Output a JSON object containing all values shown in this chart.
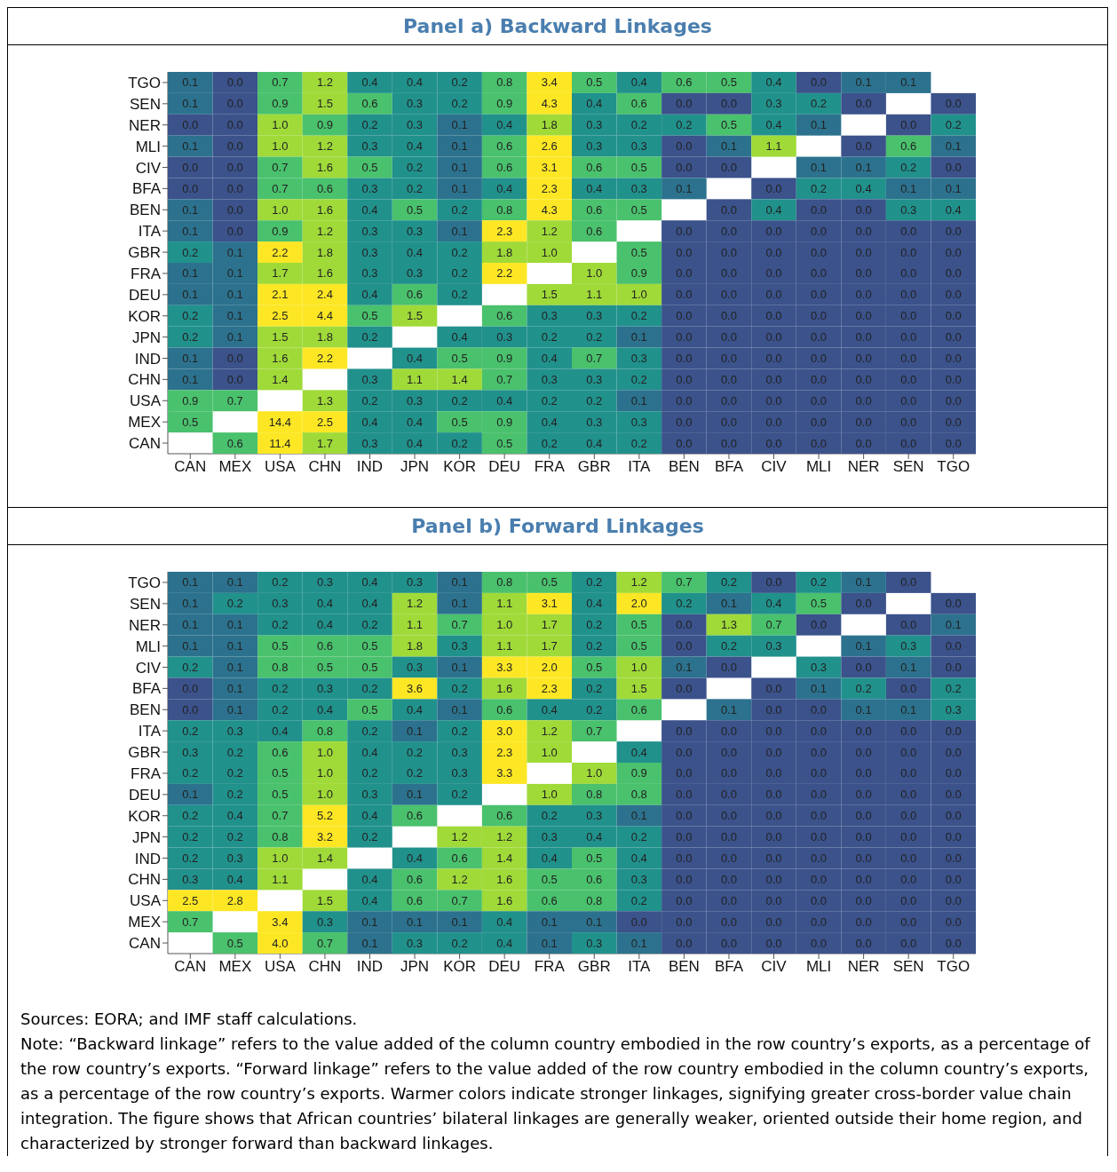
{
  "chart_data": [
    {
      "type": "heatmap",
      "title": "Panel a) Backward Linkages",
      "data_labels": true,
      "categories": [
        "CAN",
        "MEX",
        "USA",
        "CHN",
        "IND",
        "JPN",
        "KOR",
        "DEU",
        "FRA",
        "GBR",
        "ITA",
        "BEN",
        "BFA",
        "CIV",
        "MLI",
        "NER",
        "SEN",
        "TGO"
      ],
      "y_categories": [
        "TGO",
        "SEN",
        "NER",
        "MLI",
        "CIV",
        "BFA",
        "BEN",
        "ITA",
        "GBR",
        "FRA",
        "DEU",
        "KOR",
        "JPN",
        "IND",
        "CHN",
        "USA",
        "MEX",
        "CAN"
      ],
      "cells": [
        [
          0.1,
          0.0,
          0.7,
          1.2,
          0.4,
          0.4,
          0.2,
          0.8,
          3.4,
          0.5,
          0.4,
          0.6,
          0.5,
          0.4,
          0.0,
          0.1,
          0.1,
          null
        ],
        [
          0.1,
          0.0,
          0.9,
          1.5,
          0.6,
          0.3,
          0.2,
          0.9,
          4.3,
          0.4,
          0.6,
          0.0,
          0.0,
          0.3,
          0.2,
          0.0,
          null,
          0.0
        ],
        [
          0.0,
          0.0,
          1.0,
          0.9,
          0.2,
          0.3,
          0.1,
          0.4,
          1.8,
          0.3,
          0.2,
          0.2,
          0.5,
          0.4,
          0.1,
          null,
          0.0,
          0.2
        ],
        [
          0.1,
          0.0,
          1.0,
          1.2,
          0.3,
          0.4,
          0.1,
          0.6,
          2.6,
          0.3,
          0.3,
          0.0,
          0.1,
          1.1,
          null,
          0.0,
          0.6,
          0.1
        ],
        [
          0.0,
          0.0,
          0.7,
          1.6,
          0.5,
          0.2,
          0.1,
          0.6,
          3.1,
          0.6,
          0.5,
          0.0,
          0.0,
          null,
          0.1,
          0.1,
          0.2,
          0.0
        ],
        [
          0.0,
          0.0,
          0.7,
          0.6,
          0.3,
          0.2,
          0.1,
          0.4,
          2.3,
          0.4,
          0.3,
          0.1,
          null,
          0.0,
          0.2,
          0.4,
          0.1,
          0.1
        ],
        [
          0.1,
          0.0,
          1.0,
          1.6,
          0.4,
          0.5,
          0.2,
          0.8,
          4.3,
          0.6,
          0.5,
          null,
          0.0,
          0.4,
          0.0,
          0.0,
          0.3,
          0.4
        ],
        [
          0.1,
          0.0,
          0.9,
          1.2,
          0.3,
          0.3,
          0.1,
          2.3,
          1.2,
          0.6,
          null,
          0.0,
          0.0,
          0.0,
          0.0,
          0.0,
          0.0,
          0.0
        ],
        [
          0.2,
          0.1,
          2.2,
          1.8,
          0.3,
          0.4,
          0.2,
          1.8,
          1.0,
          null,
          0.5,
          0.0,
          0.0,
          0.0,
          0.0,
          0.0,
          0.0,
          0.0
        ],
        [
          0.1,
          0.1,
          1.7,
          1.6,
          0.3,
          0.3,
          0.2,
          2.2,
          null,
          1.0,
          0.9,
          0.0,
          0.0,
          0.0,
          0.0,
          0.0,
          0.0,
          0.0
        ],
        [
          0.1,
          0.1,
          2.1,
          2.4,
          0.4,
          0.6,
          0.2,
          null,
          1.5,
          1.1,
          1.0,
          0.0,
          0.0,
          0.0,
          0.0,
          0.0,
          0.0,
          0.0
        ],
        [
          0.2,
          0.1,
          2.5,
          4.4,
          0.5,
          1.5,
          null,
          0.6,
          0.3,
          0.3,
          0.2,
          0.0,
          0.0,
          0.0,
          0.0,
          0.0,
          0.0,
          0.0
        ],
        [
          0.2,
          0.1,
          1.5,
          1.8,
          0.2,
          null,
          0.4,
          0.3,
          0.2,
          0.2,
          0.1,
          0.0,
          0.0,
          0.0,
          0.0,
          0.0,
          0.0,
          0.0
        ],
        [
          0.1,
          0.0,
          1.6,
          2.2,
          null,
          0.4,
          0.5,
          0.9,
          0.4,
          0.7,
          0.3,
          0.0,
          0.0,
          0.0,
          0.0,
          0.0,
          0.0,
          0.0
        ],
        [
          0.1,
          0.0,
          1.4,
          null,
          0.3,
          1.1,
          1.4,
          0.7,
          0.3,
          0.3,
          0.2,
          0.0,
          0.0,
          0.0,
          0.0,
          0.0,
          0.0,
          0.0
        ],
        [
          0.9,
          0.7,
          null,
          1.3,
          0.2,
          0.3,
          0.2,
          0.4,
          0.2,
          0.2,
          0.1,
          0.0,
          0.0,
          0.0,
          0.0,
          0.0,
          0.0,
          0.0
        ],
        [
          0.5,
          null,
          14.4,
          2.5,
          0.4,
          0.4,
          0.5,
          0.9,
          0.4,
          0.3,
          0.3,
          0.0,
          0.0,
          0.0,
          0.0,
          0.0,
          0.0,
          0.0
        ],
        [
          null,
          0.6,
          11.4,
          1.7,
          0.3,
          0.4,
          0.2,
          0.5,
          0.2,
          0.4,
          0.2,
          0.0,
          0.0,
          0.0,
          0.0,
          0.0,
          0.0,
          0.0
        ]
      ],
      "cell_labels": [
        [
          "0.1",
          "0.0",
          "0.7",
          "1.2",
          "0.4",
          "0.4",
          "0.2",
          "0.8",
          "3.4",
          "0.5",
          "0.4",
          "0.6",
          "0.5",
          "0.4",
          "0.0",
          "0.1",
          "0.1",
          null
        ],
        [
          "0.1",
          "0.0",
          "0.9",
          "1.5",
          "0.6",
          "0.3",
          "0.2",
          "0.9",
          "4.3",
          "0.4",
          "0.6",
          "0.0",
          "0.0",
          "0.3",
          "0.2",
          "0.0",
          null,
          "0.0"
        ],
        [
          "0.0",
          "0.0",
          "1.0",
          "0.9",
          "0.2",
          "0.3",
          "0.1",
          "0.4",
          "1.8",
          "0.3",
          "0.2",
          "0.2",
          "0.5",
          "0.4",
          "0.1",
          null,
          "0.0",
          "0.2"
        ],
        [
          "0.1",
          "0.0",
          "1.0",
          "1.2",
          "0.3",
          "0.4",
          "0.1",
          "0.6",
          "2.6",
          "0.3",
          "0.3",
          "0.0",
          "0.1",
          "1.1",
          null,
          "0.0",
          "0.6",
          "0.1"
        ],
        [
          "0.0",
          "0.0",
          "0.7",
          "1.6",
          "0.5",
          "0.2",
          "0.1",
          "0.6",
          "3.1",
          "0.6",
          "0.5",
          "0.0",
          "0.0",
          null,
          "0.1",
          "0.1",
          "0.2",
          "0.0"
        ],
        [
          "0.0",
          "0.0",
          "0.7",
          "0.6",
          "0.3",
          "0.2",
          "0.1",
          "0.4",
          "2.3",
          "0.4",
          "0.3",
          "0.1",
          null,
          "0.0",
          "0.2",
          "0.4",
          "0.1",
          "0.1"
        ],
        [
          "0.1",
          "0.0",
          "1.0",
          "1.6",
          "0.4",
          "0.5",
          "0.2",
          "0.8",
          "4.3",
          "0.6",
          "0.5",
          null,
          "0.0",
          "0.4",
          "0.0",
          "0.0",
          "0.3",
          "0.4"
        ],
        [
          "0.1",
          "0.0",
          "0.9",
          "1.2",
          "0.3",
          "0.3",
          "0.1",
          "2.3",
          "1.2",
          "0.6",
          null,
          "0.0",
          "0.0",
          "0.0",
          "0.0",
          "0.0",
          "0.0",
          "0.0"
        ],
        [
          "0.2",
          "0.1",
          "2.2",
          "1.8",
          "0.3",
          "0.4",
          "0.2",
          "1.8",
          "1.0",
          null,
          "0.5",
          "0.0",
          "0.0",
          "0.0",
          "0.0",
          "0.0",
          "0.0",
          "0.0"
        ],
        [
          "0.1",
          "0.1",
          "1.7",
          "1.6",
          "0.3",
          "0.3",
          "0.2",
          "2.2",
          null,
          "1.0",
          "0.9",
          "0.0",
          "0.0",
          "0.0",
          "0.0",
          "0.0",
          "0.0",
          "0.0"
        ],
        [
          "0.1",
          "0.1",
          "2.1",
          "2.4",
          "0.4",
          "0.6",
          "0.2",
          null,
          "1.5",
          "1.1",
          "1.0",
          "0.0",
          "0.0",
          "0.0",
          "0.0",
          "0.0",
          "0.0",
          "0.0"
        ],
        [
          "0.2",
          "0.1",
          "2.5",
          "4.4",
          "0.5",
          "1.5",
          null,
          "0.6",
          "0.3",
          "0.3",
          "0.2",
          "0.0",
          "0.0",
          "0.0",
          "0.0",
          "0.0",
          "0.0",
          "0.0"
        ],
        [
          "0.2",
          "0.1",
          "1.5",
          "1.8",
          "0.2",
          null,
          "0.4",
          "0.3",
          "0.2",
          "0.2",
          "0.1",
          "0.0",
          "0.0",
          "0.0",
          "0.0",
          "0.0",
          "0.0",
          "0.0"
        ],
        [
          "0.1",
          "0.0",
          "1.6",
          "2.2",
          null,
          "0.4",
          "0.5",
          "0.9",
          "0.4",
          "0.7",
          "0.3",
          "0.0",
          "0.0",
          "0.0",
          "0.0",
          "0.0",
          "0.0",
          "0.0"
        ],
        [
          "0.1",
          "0.0",
          "1.4",
          null,
          "0.3",
          "1.1",
          "1.4",
          "0.7",
          "0.3",
          "0.3",
          "0.2",
          "0.0",
          "0.0",
          "0.0",
          "0.0",
          "0.0",
          "0.0",
          "0.0"
        ],
        [
          "0.9",
          "0.7",
          null,
          "1.3",
          "0.2",
          "0.3",
          "0.2",
          "0.4",
          "0.2",
          "0.2",
          "0.1",
          "0.0",
          "0.0",
          "0.0",
          "0.0",
          "0.0",
          "0.0",
          "0.0"
        ],
        [
          "0.5",
          null,
          "14.4",
          "2.5",
          "0.4",
          "0.4",
          "0.5",
          "0.9",
          "0.4",
          "0.3",
          "0.3",
          "0.0",
          "0.0",
          "0.0",
          "0.0",
          "0.0",
          "0.0",
          "0.0"
        ],
        [
          null,
          "0.6",
          "11.4",
          "1.7",
          "0.3",
          "0.4",
          "0.2",
          "0.5",
          "0.2",
          "0.4",
          "0.2",
          "0.0",
          "0.0",
          "0.0",
          "0.0",
          "0.0",
          "0.0",
          "0.0"
        ]
      ]
    },
    {
      "type": "heatmap",
      "title": "Panel b) Forward Linkages",
      "data_labels": true,
      "categories": [
        "CAN",
        "MEX",
        "USA",
        "CHN",
        "IND",
        "JPN",
        "KOR",
        "DEU",
        "FRA",
        "GBR",
        "ITA",
        "BEN",
        "BFA",
        "CIV",
        "MLI",
        "NER",
        "SEN",
        "TGO"
      ],
      "y_categories": [
        "TGO",
        "SEN",
        "NER",
        "MLI",
        "CIV",
        "BFA",
        "BEN",
        "ITA",
        "GBR",
        "FRA",
        "DEU",
        "KOR",
        "JPN",
        "IND",
        "CHN",
        "USA",
        "MEX",
        "CAN"
      ],
      "cells": [
        [
          0.1,
          0.1,
          0.2,
          0.3,
          0.4,
          0.3,
          0.1,
          0.8,
          0.5,
          0.2,
          1.2,
          0.7,
          0.2,
          0.0,
          0.2,
          0.1,
          0.0,
          null
        ],
        [
          0.1,
          0.2,
          0.3,
          0.4,
          0.4,
          1.2,
          0.1,
          1.1,
          3.1,
          0.4,
          2.0,
          0.2,
          0.1,
          0.4,
          0.5,
          0.0,
          null,
          0.0
        ],
        [
          0.1,
          0.1,
          0.2,
          0.4,
          0.2,
          1.1,
          0.7,
          1.0,
          1.7,
          0.2,
          0.5,
          0.0,
          1.3,
          0.7,
          0.0,
          null,
          0.0,
          0.1
        ],
        [
          0.1,
          0.1,
          0.5,
          0.6,
          0.5,
          1.8,
          0.3,
          1.1,
          1.7,
          0.2,
          0.5,
          0.0,
          0.2,
          0.3,
          null,
          0.1,
          0.3,
          0.0
        ],
        [
          0.2,
          0.1,
          0.8,
          0.5,
          0.5,
          0.3,
          0.1,
          3.3,
          2.0,
          0.5,
          1.0,
          0.1,
          0.0,
          null,
          0.3,
          0.0,
          0.1,
          0.0
        ],
        [
          0.0,
          0.1,
          0.2,
          0.3,
          0.2,
          3.6,
          0.2,
          1.6,
          2.3,
          0.2,
          1.5,
          0.0,
          null,
          0.0,
          0.1,
          0.2,
          0.0,
          0.2
        ],
        [
          0.0,
          0.1,
          0.2,
          0.4,
          0.5,
          0.4,
          0.1,
          0.6,
          0.4,
          0.2,
          0.6,
          null,
          0.1,
          0.0,
          0.0,
          0.1,
          0.1,
          0.3
        ],
        [
          0.2,
          0.3,
          0.4,
          0.8,
          0.2,
          0.1,
          0.2,
          3.0,
          1.2,
          0.7,
          null,
          0.0,
          0.0,
          0.0,
          0.0,
          0.0,
          0.0,
          0.0
        ],
        [
          0.3,
          0.2,
          0.6,
          1.0,
          0.4,
          0.2,
          0.3,
          2.3,
          1.0,
          null,
          0.4,
          0.0,
          0.0,
          0.0,
          0.0,
          0.0,
          0.0,
          0.0
        ],
        [
          0.2,
          0.2,
          0.5,
          1.0,
          0.2,
          0.2,
          0.3,
          3.3,
          null,
          1.0,
          0.9,
          0.0,
          0.0,
          0.0,
          0.0,
          0.0,
          0.0,
          0.0
        ],
        [
          0.1,
          0.2,
          0.5,
          1.0,
          0.3,
          0.1,
          0.2,
          null,
          1.0,
          0.8,
          0.8,
          0.0,
          0.0,
          0.0,
          0.0,
          0.0,
          0.0,
          0.0
        ],
        [
          0.2,
          0.4,
          0.7,
          5.2,
          0.4,
          0.6,
          null,
          0.6,
          0.2,
          0.3,
          0.1,
          0.0,
          0.0,
          0.0,
          0.0,
          0.0,
          0.0,
          0.0
        ],
        [
          0.2,
          0.2,
          0.8,
          3.2,
          0.2,
          null,
          1.2,
          1.2,
          0.3,
          0.4,
          0.2,
          0.0,
          0.0,
          0.0,
          0.0,
          0.0,
          0.0,
          0.0
        ],
        [
          0.2,
          0.3,
          1.0,
          1.4,
          null,
          0.4,
          0.6,
          1.4,
          0.4,
          0.5,
          0.4,
          0.0,
          0.0,
          0.0,
          0.0,
          0.0,
          0.0,
          0.0
        ],
        [
          0.3,
          0.4,
          1.1,
          null,
          0.4,
          0.6,
          1.2,
          1.6,
          0.5,
          0.6,
          0.3,
          0.0,
          0.0,
          0.0,
          0.0,
          0.0,
          0.0,
          0.0
        ],
        [
          2.5,
          2.8,
          null,
          1.5,
          0.4,
          0.6,
          0.7,
          1.6,
          0.6,
          0.8,
          0.2,
          0.0,
          0.0,
          0.0,
          0.0,
          0.0,
          0.0,
          0.0
        ],
        [
          0.7,
          null,
          3.4,
          0.3,
          0.1,
          0.1,
          0.1,
          0.4,
          0.1,
          0.1,
          0.0,
          0.0,
          0.0,
          0.0,
          0.0,
          0.0,
          0.0,
          0.0
        ],
        [
          null,
          0.5,
          4.0,
          0.7,
          0.1,
          0.3,
          0.2,
          0.4,
          0.1,
          0.3,
          0.1,
          0.0,
          0.0,
          0.0,
          0.0,
          0.0,
          0.0,
          0.0
        ]
      ],
      "cell_labels": [
        [
          "0.1",
          "0.1",
          "0.2",
          "0.3",
          "0.4",
          "0.3",
          "0.1",
          "0.8",
          "0.5",
          "0.2",
          "1.2",
          "0.7",
          "0.2",
          "0.0",
          "0.2",
          "0.1",
          "0.0",
          null
        ],
        [
          "0.1",
          "0.2",
          "0.3",
          "0.4",
          "0.4",
          "1.2",
          "0.1",
          "1.1",
          "3.1",
          "0.4",
          "2.0",
          "0.2",
          "0.1",
          "0.4",
          "0.5",
          "0.0",
          null,
          "0.0"
        ],
        [
          "0.1",
          "0.1",
          "0.2",
          "0.4",
          "0.2",
          "1.1",
          "0.7",
          "1.0",
          "1.7",
          "0.2",
          "0.5",
          "0.0",
          "1.3",
          "0.7",
          "0.0",
          null,
          "0.0",
          "0.1"
        ],
        [
          "0.1",
          "0.1",
          "0.5",
          "0.6",
          "0.5",
          "1.8",
          "0.3",
          "1.1",
          "1.7",
          "0.2",
          "0.5",
          "0.0",
          "0.2",
          "0.3",
          null,
          "0.1",
          "0.3",
          "0.0"
        ],
        [
          "0.2",
          "0.1",
          "0.8",
          "0.5",
          "0.5",
          "0.3",
          "0.1",
          "3.3",
          "2.0",
          "0.5",
          "1.0",
          "0.1",
          "0.0",
          null,
          "0.3",
          "0.0",
          "0.1",
          "0.0"
        ],
        [
          "0.0",
          "0.1",
          "0.2",
          "0.3",
          "0.2",
          "3.6",
          "0.2",
          "1.6",
          "2.3",
          "0.2",
          "1.5",
          "0.0",
          null,
          "0.0",
          "0.1",
          "0.2",
          "0.0",
          "0.2"
        ],
        [
          "0.0",
          "0.1",
          "0.2",
          "0.4",
          "0.5",
          "0.4",
          "0.1",
          "0.6",
          "0.4",
          "0.2",
          "0.6",
          null,
          "0.1",
          "0.0",
          "0.0",
          "0.1",
          "0.1",
          "0.3"
        ],
        [
          "0.2",
          "0.3",
          "0.4",
          "0.8",
          "0.2",
          "0.1",
          "0.2",
          "3.0",
          "1.2",
          "0.7",
          null,
          "0.0",
          "0.0",
          "0.0",
          "0.0",
          "0.0",
          "0.0",
          "0.0"
        ],
        [
          "0.3",
          "0.2",
          "0.6",
          "1.0",
          "0.4",
          "0.2",
          "0.3",
          "2.3",
          "1.0",
          null,
          "0.4",
          "0.0",
          "0.0",
          "0.0",
          "0.0",
          "0.0",
          "0.0",
          "0.0"
        ],
        [
          "0.2",
          "0.2",
          "0.5",
          "1.0",
          "0.2",
          "0.2",
          "0.3",
          "3.3",
          null,
          "1.0",
          "0.9",
          "0.0",
          "0.0",
          "0.0",
          "0.0",
          "0.0",
          "0.0",
          "0.0"
        ],
        [
          "0.1",
          "0.2",
          "0.5",
          "1.0",
          "0.3",
          "0.1",
          "0.2",
          null,
          "1.0",
          "0.8",
          "0.8",
          "0.0",
          "0.0",
          "0.0",
          "0.0",
          "0.0",
          "0.0",
          "0.0"
        ],
        [
          "0.2",
          "0.4",
          "0.7",
          "5.2",
          "0.4",
          "0.6",
          null,
          "0.6",
          "0.2",
          "0.3",
          "0.1",
          "0.0",
          "0.0",
          "0.0",
          "0.0",
          "0.0",
          "0.0",
          "0.0"
        ],
        [
          "0.2",
          "0.2",
          "0.8",
          "3.2",
          "0.2",
          null,
          "1.2",
          "1.2",
          "0.3",
          "0.4",
          "0.2",
          "0.0",
          "0.0",
          "0.0",
          "0.0",
          "0.0",
          "0.0",
          "0.0"
        ],
        [
          "0.2",
          "0.3",
          "1.0",
          "1.4",
          null,
          "0.4",
          "0.6",
          "1.4",
          "0.4",
          "0.5",
          "0.4",
          "0.0",
          "0.0",
          "0.0",
          "0.0",
          "0.0",
          "0.0",
          "0.0"
        ],
        [
          "0.3",
          "0.4",
          "1.1",
          null,
          "0.4",
          "0.6",
          "1.2",
          "1.6",
          "0.5",
          "0.6",
          "0.3",
          "0.0",
          "0.0",
          "0.0",
          "0.0",
          "0.0",
          "0.0",
          "0.0"
        ],
        [
          "2.5",
          "2.8",
          null,
          "1.5",
          "0.4",
          "0.6",
          "0.7",
          "1.6",
          "0.6",
          "0.8",
          "0.2",
          "0.0",
          "0.0",
          "0.0",
          "0.0",
          "0.0",
          "0.0",
          "0.0"
        ],
        [
          "0.7",
          null,
          "3.4",
          "0.3",
          "0.1",
          "0.1",
          "0.1",
          "0.4",
          "0.1",
          "0.1",
          "0.0",
          "0.0",
          "0.0",
          "0.0",
          "0.0",
          "0.0",
          "0.0",
          "0.0"
        ],
        [
          null,
          "0.5",
          "4.0",
          "0.7",
          "0.1",
          "0.3",
          "0.2",
          "0.4",
          "0.1",
          "0.3",
          "0.1",
          "0.0",
          "0.0",
          "0.0",
          "0.0",
          "0.0",
          "0.0",
          "0.0"
        ]
      ],
      "annotations": [
        "Sources: EORA; and IMF staff calculations.",
        "Note: “Backward linkage” refers to the value added of the column country embodied in the row country’s exports, as a percentage of the row country’s exports. “Forward linkage” refers to the value added of the row country embodied in the column country’s exports, as a percentage of the row country’s exports. Warmer colors indicate stronger linkages, signifying greater cross-border value chain integration. The figure shows that African countries’ bilateral linkages are generally weaker, oriented outside their home region, and characterized by stronger forward than backward linkages."
      ]
    }
  ]
}
